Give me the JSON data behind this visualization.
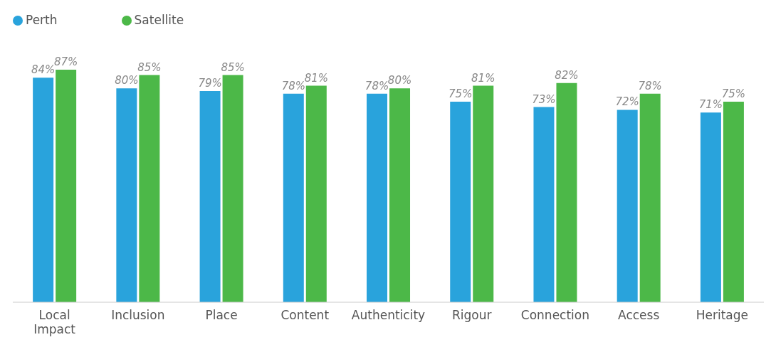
{
  "chart_data": {
    "type": "bar",
    "categories": [
      "Local Impact",
      "Inclusion",
      "Place",
      "Content",
      "Authenticity",
      "Rigour",
      "Connection",
      "Access",
      "Heritage"
    ],
    "series": [
      {
        "name": "Perth",
        "color": "#29a3dc",
        "values": [
          84,
          80,
          79,
          78,
          78,
          75,
          73,
          72,
          71
        ],
        "value_labels": [
          "84%",
          "80%",
          "79%",
          "78%",
          "78%",
          "75%",
          "73%",
          "72%",
          "71%"
        ]
      },
      {
        "name": "Satellite",
        "color": "#4cb848",
        "values": [
          87,
          85,
          85,
          81,
          80,
          81,
          82,
          78,
          75
        ],
        "value_labels": [
          "87%",
          "85%",
          "85%",
          "81%",
          "80%",
          "81%",
          "82%",
          "78%",
          "75%"
        ]
      }
    ],
    "legend": "top left",
    "grid": false
  }
}
